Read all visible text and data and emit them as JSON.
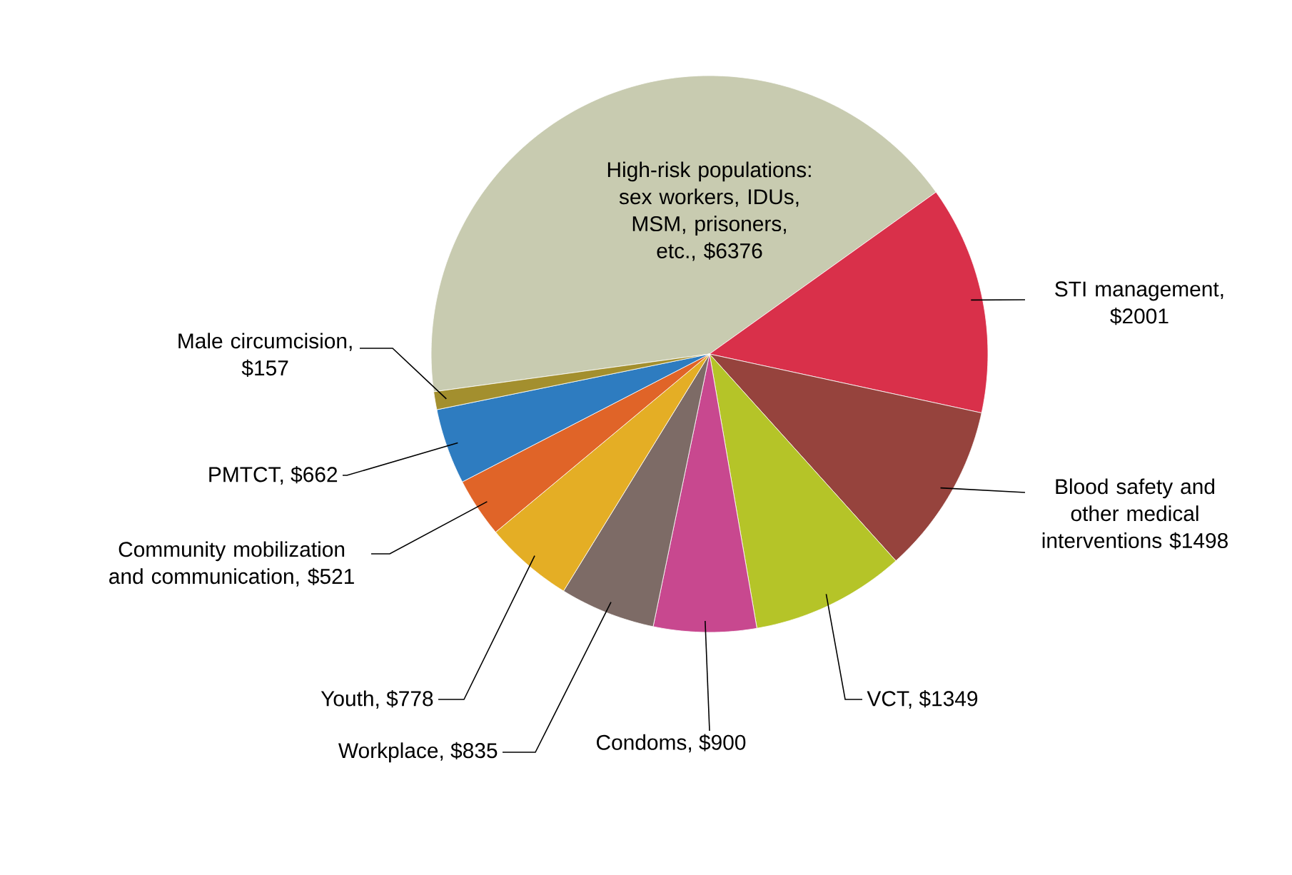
{
  "chart_data": {
    "type": "pie",
    "categories": [
      "High-risk populations: sex workers, IDUs, MSM, prisoners, etc., $6376",
      "STI management, $2001",
      "Blood safety and other medical interventions $1498",
      "VCT, $1349",
      "Condoms, $900",
      "Workplace, $835",
      "Youth, $778",
      "Community mobilization and communication, $521",
      "PMTCT, $662",
      "Male circumcision, $157"
    ],
    "values": [
      6376,
      2001,
      1498,
      1349,
      900,
      835,
      778,
      521,
      662,
      157
    ],
    "colors": [
      "#c8cbb0",
      "#d9304a",
      "#96433d",
      "#b5c428",
      "#c8488f",
      "#7d6b66",
      "#e4ae25",
      "#e06428",
      "#2e7cc0",
      "#a38f2e"
    ]
  }
}
